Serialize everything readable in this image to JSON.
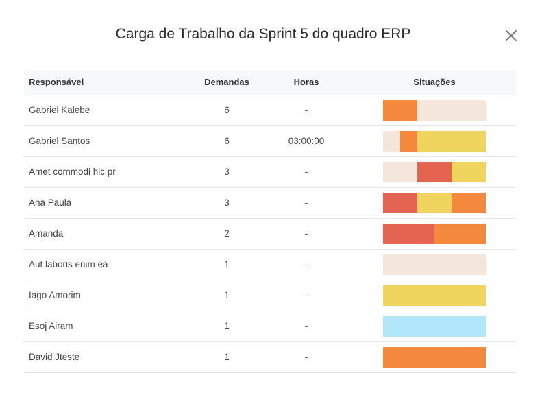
{
  "modal": {
    "title": "Carga de Trabalho da Sprint 5 do quadro ERP",
    "close_icon": "close-icon"
  },
  "colors": {
    "beige": "#f5e6dc",
    "orange": "#f4893d",
    "yellow": "#efd45e",
    "red": "#e56351",
    "blue": "#b2e6fa"
  },
  "table": {
    "headers": {
      "responsavel": "Responsável",
      "demandas": "Demandas",
      "horas": "Horas",
      "situacoes": "Situações"
    },
    "rows": [
      {
        "name": "Gabriel Kalebe",
        "demandas": "6",
        "horas": "-",
        "situacoes": [
          {
            "status": "orange",
            "fraction": 0.333
          },
          {
            "status": "beige",
            "fraction": 0.667
          }
        ]
      },
      {
        "name": "Gabriel Santos",
        "demandas": "6",
        "horas": "03:00:00",
        "situacoes": [
          {
            "status": "beige",
            "fraction": 0.167
          },
          {
            "status": "orange",
            "fraction": 0.167
          },
          {
            "status": "yellow",
            "fraction": 0.666
          }
        ]
      },
      {
        "name": "Amet commodi hic pr",
        "demandas": "3",
        "horas": "-",
        "situacoes": [
          {
            "status": "beige",
            "fraction": 0.333
          },
          {
            "status": "red",
            "fraction": 0.334
          },
          {
            "status": "yellow",
            "fraction": 0.333
          }
        ]
      },
      {
        "name": "Ana Paula",
        "demandas": "3",
        "horas": "-",
        "situacoes": [
          {
            "status": "red",
            "fraction": 0.333
          },
          {
            "status": "yellow",
            "fraction": 0.334
          },
          {
            "status": "orange",
            "fraction": 0.333
          }
        ]
      },
      {
        "name": "Amanda",
        "demandas": "2",
        "horas": "-",
        "situacoes": [
          {
            "status": "red",
            "fraction": 0.5
          },
          {
            "status": "orange",
            "fraction": 0.5
          }
        ]
      },
      {
        "name": "Aut laboris enim ea",
        "demandas": "1",
        "horas": "-",
        "situacoes": [
          {
            "status": "beige",
            "fraction": 1
          }
        ]
      },
      {
        "name": "Iago Amorim",
        "demandas": "1",
        "horas": "-",
        "situacoes": [
          {
            "status": "yellow",
            "fraction": 1
          }
        ]
      },
      {
        "name": "Esoj Airam",
        "demandas": "1",
        "horas": "-",
        "situacoes": [
          {
            "status": "blue",
            "fraction": 1
          }
        ]
      },
      {
        "name": "David Jteste",
        "demandas": "1",
        "horas": "-",
        "situacoes": [
          {
            "status": "orange",
            "fraction": 1
          }
        ]
      }
    ]
  }
}
